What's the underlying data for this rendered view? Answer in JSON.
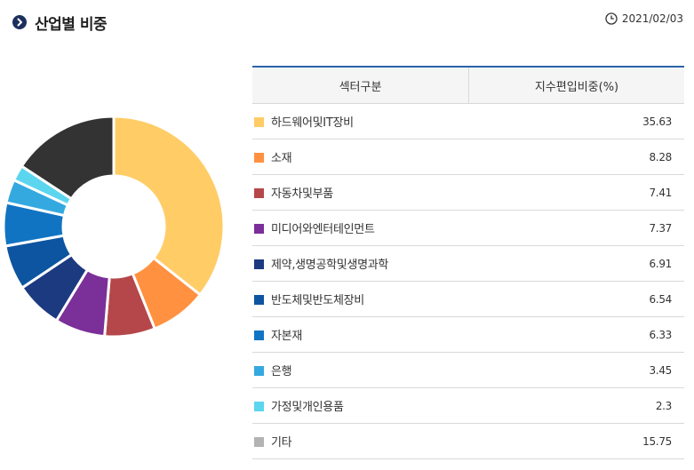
{
  "header": {
    "title": "산업별 비중",
    "date": "2021/02/03"
  },
  "table": {
    "col_sector": "섹터구분",
    "col_weight": "지수편입비중(%)"
  },
  "chart_data": {
    "type": "pie",
    "style": "donut",
    "start_angle_deg": 90,
    "direction": "clockwise",
    "slices": [
      {
        "label": "하드웨어및IT장비",
        "value": 35.63,
        "color": "#ffcc66"
      },
      {
        "label": "소재",
        "value": 8.28,
        "color": "#ff9140"
      },
      {
        "label": "자동차및부품",
        "value": 7.41,
        "color": "#b5474b"
      },
      {
        "label": "미디어와엔터테인먼트",
        "value": 7.37,
        "color": "#7b2f98"
      },
      {
        "label": "제약,생명공학및생명과학",
        "value": 6.91,
        "color": "#1c3a80"
      },
      {
        "label": "반도체및반도체장비",
        "value": 6.54,
        "color": "#0d55a0"
      },
      {
        "label": "자본재",
        "value": 6.33,
        "color": "#1074c3"
      },
      {
        "label": "은행",
        "value": 3.45,
        "color": "#34a9e0"
      },
      {
        "label": "가정및개인용품",
        "value": 2.3,
        "color": "#5bd6ee"
      },
      {
        "label": "기타",
        "value": 15.75,
        "color": "#333333"
      }
    ]
  },
  "legend_colors": {
    "기타": "#b3b3b3"
  }
}
